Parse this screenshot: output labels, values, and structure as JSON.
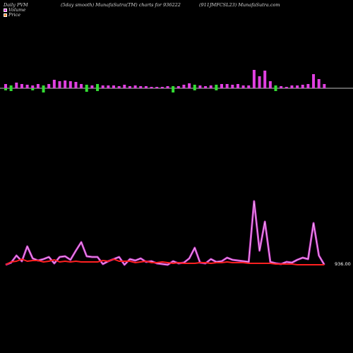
{
  "header": {
    "left": "Daily PVM",
    "center_left": "(5day smooth) MunafaSutra(TM) charts for 936222",
    "center_right": "(911JMFCSL23) MunafaSutra.com"
  },
  "legend": [
    {
      "label": "Volume",
      "color": "#e040e0"
    },
    {
      "label": "Price",
      "color": "#ff8a2a"
    }
  ],
  "last_price_label": "936.00",
  "chart_data": {
    "type": "bar+line",
    "volume_bars": {
      "heights": [
        6,
        4,
        8,
        6,
        5,
        4,
        6,
        4,
        6,
        12,
        10,
        11,
        10,
        9,
        6,
        5,
        4,
        6,
        4,
        4,
        4,
        3,
        5,
        3,
        4,
        3,
        3,
        2,
        2,
        2,
        3,
        3,
        3,
        5,
        7,
        5,
        4,
        3,
        4,
        5,
        6,
        6,
        5,
        6,
        4,
        4,
        26,
        17,
        25,
        10,
        4,
        3,
        2,
        4,
        4,
        5,
        6,
        20,
        13,
        6
      ],
      "colors": [
        "m",
        "g",
        "m",
        "m",
        "m",
        "m",
        "m",
        "g",
        "m",
        "m",
        "m",
        "m",
        "m",
        "m",
        "m",
        "g",
        "m",
        "g",
        "m",
        "m",
        "m",
        "m",
        "m",
        "m",
        "m",
        "m",
        "m",
        "m",
        "m",
        "m",
        "m",
        "g",
        "m",
        "m",
        "m",
        "g",
        "m",
        "m",
        "m",
        "g",
        "m",
        "m",
        "m",
        "m",
        "m",
        "m",
        "m",
        "m",
        "m",
        "m",
        "g",
        "m",
        "m",
        "m",
        "m",
        "m",
        "m",
        "m",
        "m",
        "m"
      ],
      "below": [
        3,
        4,
        0,
        0,
        0,
        3,
        0,
        6,
        0,
        0,
        0,
        0,
        0,
        0,
        0,
        5,
        0,
        4,
        0,
        0,
        0,
        0,
        0,
        0,
        0,
        0,
        0,
        0,
        0,
        0,
        0,
        6,
        0,
        0,
        0,
        3,
        0,
        0,
        0,
        3,
        0,
        0,
        0,
        0,
        0,
        0,
        0,
        0,
        0,
        0,
        4,
        0,
        0,
        0,
        0,
        0,
        0,
        0,
        0,
        0
      ]
    },
    "volume_line": [
      375,
      372,
      362,
      370,
      349,
      366,
      369,
      367,
      364,
      373,
      364,
      363,
      368,
      355,
      343,
      363,
      364,
      364,
      374,
      370,
      367,
      364,
      375,
      367,
      369,
      366,
      371,
      370,
      373,
      374,
      375,
      370,
      373,
      372,
      366,
      351,
      372,
      373,
      367,
      371,
      370,
      365,
      368,
      369,
      370,
      371,
      285,
      355,
      314,
      371,
      373,
      374,
      371,
      372,
      368,
      365,
      367,
      316,
      362,
      375
    ],
    "price_line": [
      375,
      371,
      370,
      367,
      370,
      369,
      369,
      371,
      370,
      368,
      371,
      370,
      371,
      370,
      371,
      371,
      371,
      371,
      369,
      370,
      367,
      370,
      370,
      370,
      372,
      371,
      370,
      372,
      372,
      371,
      372,
      373,
      372,
      373,
      373,
      373,
      372,
      372,
      373,
      372,
      372,
      371,
      372,
      372,
      372,
      373,
      373,
      373,
      373,
      373,
      374,
      374,
      374,
      374,
      375,
      375,
      375,
      375,
      375,
      375
    ]
  }
}
